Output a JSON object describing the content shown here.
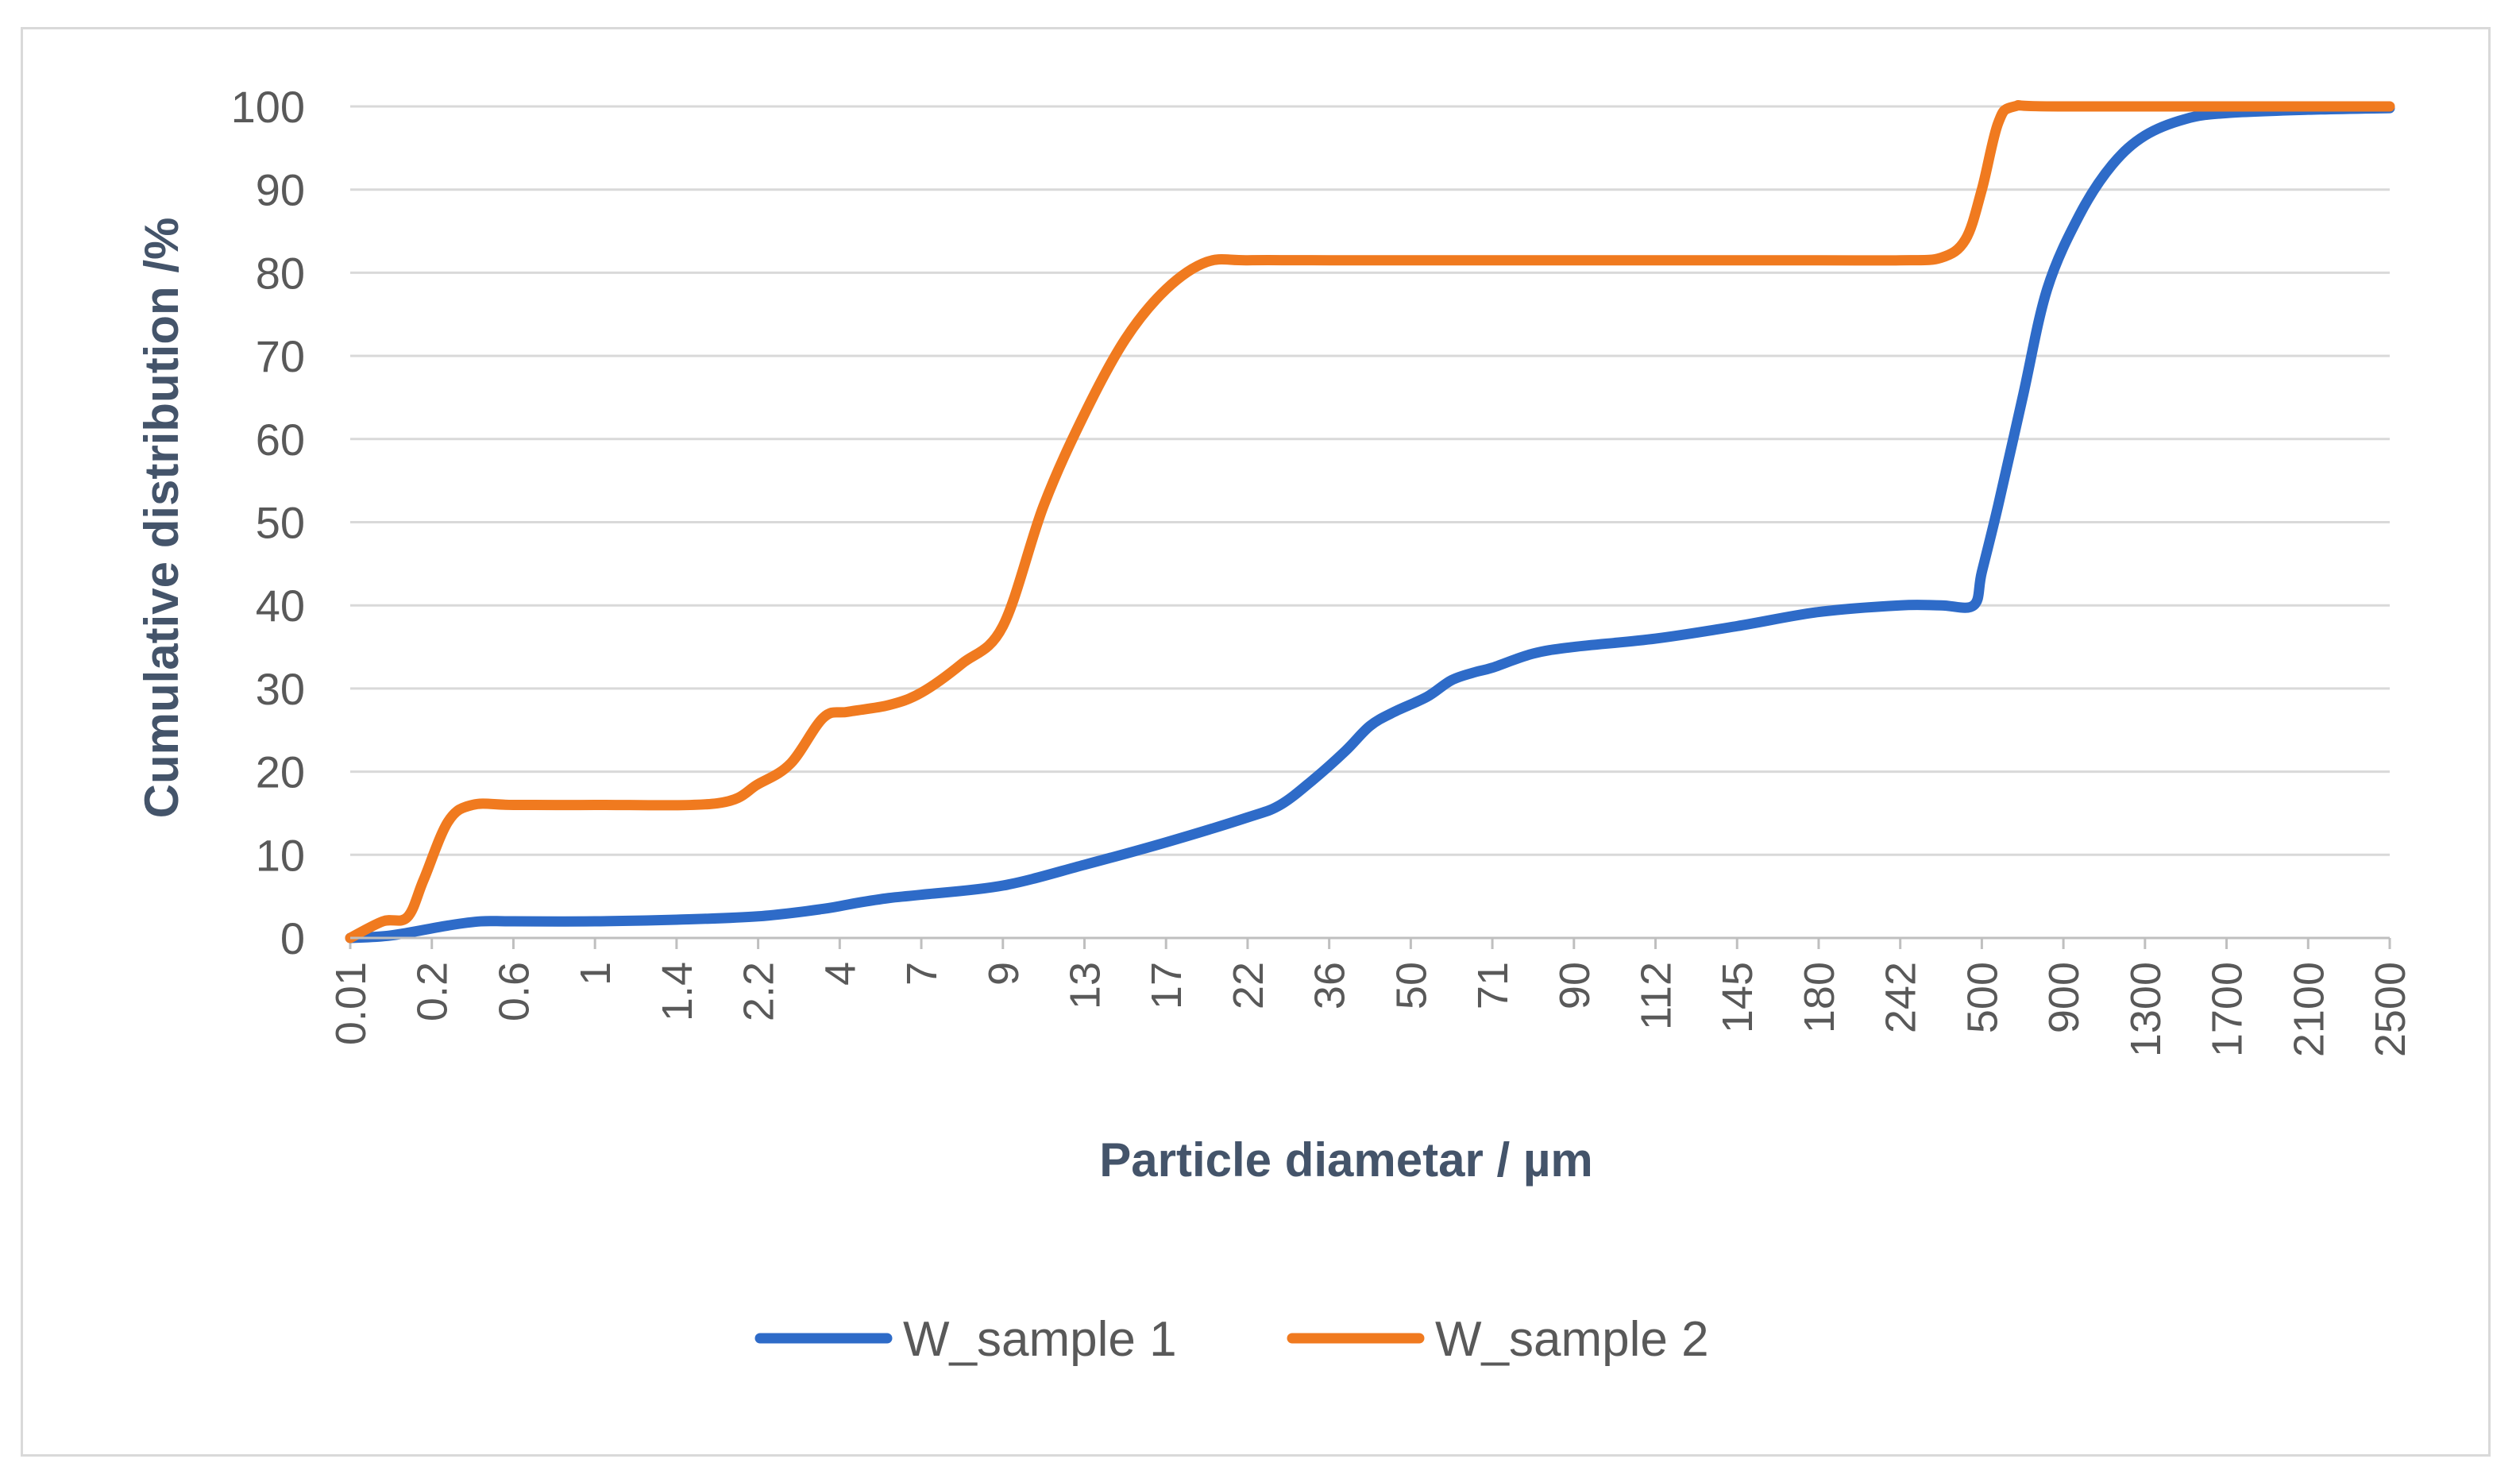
{
  "chart_data": {
    "type": "line",
    "xlabel": "Particle diametar  / µm",
    "ylabel": "Cumulative distribution  /%",
    "ylim": [
      0,
      100
    ],
    "yticks": [
      0,
      10,
      20,
      30,
      40,
      50,
      60,
      70,
      80,
      90,
      100
    ],
    "x_tick_labels": [
      "0.01",
      "0.2",
      "0.6",
      "1",
      "1.4",
      "2.2",
      "4",
      "7",
      "9",
      "13",
      "17",
      "22",
      "36",
      "50",
      "71",
      "90",
      "112",
      "145",
      "180",
      "242",
      "500",
      "900",
      "1300",
      "1700",
      "2100",
      "2500"
    ],
    "grid": true,
    "legend_position": "bottom",
    "series": [
      {
        "name": "W_sample 1",
        "color": "#2e6bc8",
        "points": [
          [
            0,
            0
          ],
          [
            0.5,
            0.3
          ],
          [
            1.2,
            1.5
          ],
          [
            1.6,
            2
          ],
          [
            2,
            2
          ],
          [
            3,
            2
          ],
          [
            4,
            2.2
          ],
          [
            5,
            2.6
          ],
          [
            5.8,
            3.5
          ],
          [
            6.2,
            4.2
          ],
          [
            6.6,
            4.8
          ],
          [
            7,
            5.2
          ],
          [
            8,
            6.3
          ],
          [
            9,
            8.8
          ],
          [
            10,
            11.5
          ],
          [
            11,
            14.5
          ],
          [
            11.4,
            16
          ],
          [
            11.8,
            19
          ],
          [
            12.2,
            22.5
          ],
          [
            12.5,
            25.5
          ],
          [
            12.8,
            27.2
          ],
          [
            13.2,
            29
          ],
          [
            13.5,
            31
          ],
          [
            13.8,
            32
          ],
          [
            14,
            32.5
          ],
          [
            14.5,
            34.2
          ],
          [
            15,
            35
          ],
          [
            16,
            36
          ],
          [
            17,
            37.5
          ],
          [
            18,
            39.2
          ],
          [
            19,
            40
          ],
          [
            19.5,
            40
          ],
          [
            19.9,
            40
          ],
          [
            20,
            44
          ],
          [
            20.2,
            52
          ],
          [
            20.5,
            65
          ],
          [
            20.8,
            78
          ],
          [
            21.2,
            87
          ],
          [
            21.6,
            93
          ],
          [
            22,
            96.5
          ],
          [
            22.5,
            98.5
          ],
          [
            23,
            99.2
          ],
          [
            24,
            99.6
          ],
          [
            25,
            99.8
          ]
        ]
      },
      {
        "name": "W_sample 2",
        "color": "#f07a1f",
        "points": [
          [
            0,
            0
          ],
          [
            0.4,
            2
          ],
          [
            0.7,
            2.5
          ],
          [
            0.9,
            7
          ],
          [
            1.2,
            14
          ],
          [
            1.5,
            16
          ],
          [
            2,
            16
          ],
          [
            3,
            16
          ],
          [
            4.5,
            16.2
          ],
          [
            5,
            18.5
          ],
          [
            5.4,
            21
          ],
          [
            5.8,
            26.5
          ],
          [
            6.1,
            27.2
          ],
          [
            6.6,
            28
          ],
          [
            7,
            29.5
          ],
          [
            7.5,
            33
          ],
          [
            8,
            37.5
          ],
          [
            8.5,
            52
          ],
          [
            9,
            63
          ],
          [
            9.5,
            72
          ],
          [
            10,
            78
          ],
          [
            10.5,
            81.3
          ],
          [
            11,
            81.5
          ],
          [
            12,
            81.5
          ],
          [
            15,
            81.5
          ],
          [
            18,
            81.5
          ],
          [
            19,
            81.5
          ],
          [
            19.5,
            81.8
          ],
          [
            19.8,
            84
          ],
          [
            20,
            90
          ],
          [
            20.2,
            98
          ],
          [
            20.4,
            100
          ],
          [
            21,
            100
          ],
          [
            25,
            100
          ]
        ]
      }
    ]
  }
}
